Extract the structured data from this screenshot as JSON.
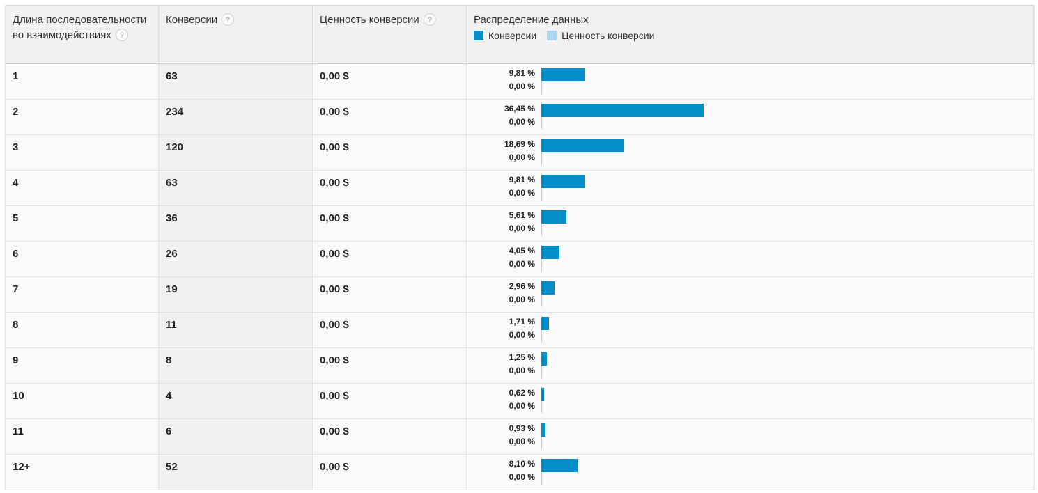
{
  "header": {
    "col_length": "Длина последовательности во взаимодействиях",
    "col_conversions": "Конверсии",
    "col_value": "Ценность конверсии",
    "col_distribution": "Распределение данных",
    "help_glyph": "?",
    "legend": [
      {
        "label": "Конверсии",
        "color": "#058dc7"
      },
      {
        "label": "Ценность конверсии",
        "color": "#a9d7f2"
      }
    ]
  },
  "rows": [
    {
      "length": "1",
      "conversions": "63",
      "value": "0,00 $",
      "conv_pct": "9,81 %",
      "value_pct": "0,00 %",
      "conv_share": 9.81
    },
    {
      "length": "2",
      "conversions": "234",
      "value": "0,00 $",
      "conv_pct": "36,45 %",
      "value_pct": "0,00 %",
      "conv_share": 36.45
    },
    {
      "length": "3",
      "conversions": "120",
      "value": "0,00 $",
      "conv_pct": "18,69 %",
      "value_pct": "0,00 %",
      "conv_share": 18.69
    },
    {
      "length": "4",
      "conversions": "63",
      "value": "0,00 $",
      "conv_pct": "9,81 %",
      "value_pct": "0,00 %",
      "conv_share": 9.81
    },
    {
      "length": "5",
      "conversions": "36",
      "value": "0,00 $",
      "conv_pct": "5,61 %",
      "value_pct": "0,00 %",
      "conv_share": 5.61
    },
    {
      "length": "6",
      "conversions": "26",
      "value": "0,00 $",
      "conv_pct": "4,05 %",
      "value_pct": "0,00 %",
      "conv_share": 4.05
    },
    {
      "length": "7",
      "conversions": "19",
      "value": "0,00 $",
      "conv_pct": "2,96 %",
      "value_pct": "0,00 %",
      "conv_share": 2.96
    },
    {
      "length": "8",
      "conversions": "11",
      "value": "0,00 $",
      "conv_pct": "1,71 %",
      "value_pct": "0,00 %",
      "conv_share": 1.71
    },
    {
      "length": "9",
      "conversions": "8",
      "value": "0,00 $",
      "conv_pct": "1,25 %",
      "value_pct": "0,00 %",
      "conv_share": 1.25
    },
    {
      "length": "10",
      "conversions": "4",
      "value": "0,00 $",
      "conv_pct": "0,62 %",
      "value_pct": "0,00 %",
      "conv_share": 0.62
    },
    {
      "length": "11",
      "conversions": "6",
      "value": "0,00 $",
      "conv_pct": "0,93 %",
      "value_pct": "0,00 %",
      "conv_share": 0.93
    },
    {
      "length": "12+",
      "conversions": "52",
      "value": "0,00 $",
      "conv_pct": "8,10 %",
      "value_pct": "0,00 %",
      "conv_share": 8.1
    }
  ]
}
